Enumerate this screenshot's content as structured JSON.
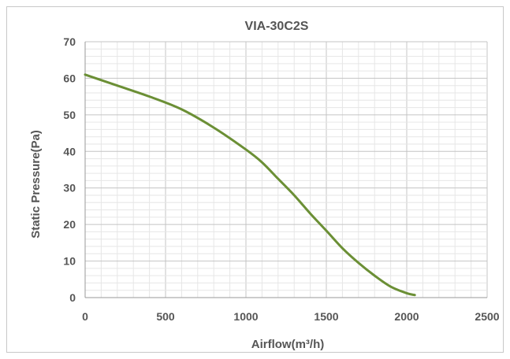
{
  "chart_data": {
    "type": "line",
    "title": "VIA-30C2S",
    "xlabel": "Airflow(m³/h)",
    "ylabel": "Static Pressure(Pa)",
    "xlim": [
      0,
      2500
    ],
    "ylim": [
      0,
      70
    ],
    "x_ticks": [
      "0",
      "500",
      "1000",
      "1500",
      "2000",
      "2500"
    ],
    "y_ticks": [
      "0",
      "10",
      "20",
      "30",
      "40",
      "50",
      "60",
      "70"
    ],
    "grid": true,
    "series": [
      {
        "color": "#6b8f35",
        "x": [
          0,
          200,
          400,
          600,
          800,
          1000,
          1100,
          1200,
          1300,
          1400,
          1500,
          1600,
          1700,
          1800,
          1900,
          2000,
          2050
        ],
        "y": [
          61,
          58,
          55,
          51.5,
          46.5,
          40.5,
          37,
          32.5,
          28,
          23,
          18.3,
          13.5,
          9.5,
          6,
          3,
          1.2,
          0.7
        ]
      }
    ]
  }
}
